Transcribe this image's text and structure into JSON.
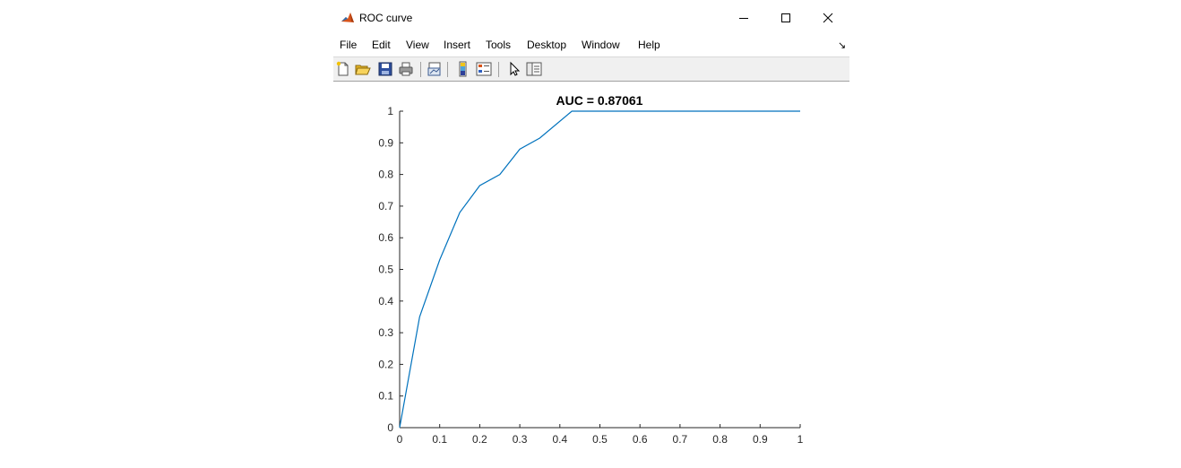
{
  "window": {
    "title": "ROC curve",
    "controls": {
      "minimize": "—",
      "maximize": "☐",
      "close": "✕"
    }
  },
  "menu": [
    "File",
    "Edit",
    "View",
    "Insert",
    "Tools",
    "Desktop",
    "Window",
    "Help"
  ],
  "dock_arrow": "↘",
  "toolbar": {
    "buttons": [
      "new-figure-icon",
      "open-file-icon",
      "save-icon",
      "print-icon",
      "link-plot-icon",
      "insert-colorbar-icon",
      "insert-legend-icon",
      "edit-plot-arrow-icon",
      "property-inspector-icon"
    ]
  },
  "accent_color": "#0072bd",
  "chart_data": {
    "type": "line",
    "title": "AUC = 0.87061",
    "xlabel": "",
    "ylabel": "",
    "xlim": [
      0,
      1
    ],
    "ylim": [
      0,
      1
    ],
    "xticks": [
      "0",
      "0.1",
      "0.2",
      "0.3",
      "0.4",
      "0.5",
      "0.6",
      "0.7",
      "0.8",
      "0.9",
      "1"
    ],
    "yticks": [
      "0",
      "0.1",
      "0.2",
      "0.3",
      "0.4",
      "0.5",
      "0.6",
      "0.7",
      "0.8",
      "0.9",
      "1"
    ],
    "grid": false,
    "series": [
      {
        "color": "#0072bd",
        "x": [
          0,
          0.05,
          0.1,
          0.15,
          0.2,
          0.25,
          0.3,
          0.35,
          0.43,
          1.0
        ],
        "y": [
          0,
          0.35,
          0.53,
          0.68,
          0.765,
          0.8,
          0.88,
          0.915,
          1.0,
          1.0
        ]
      }
    ]
  }
}
